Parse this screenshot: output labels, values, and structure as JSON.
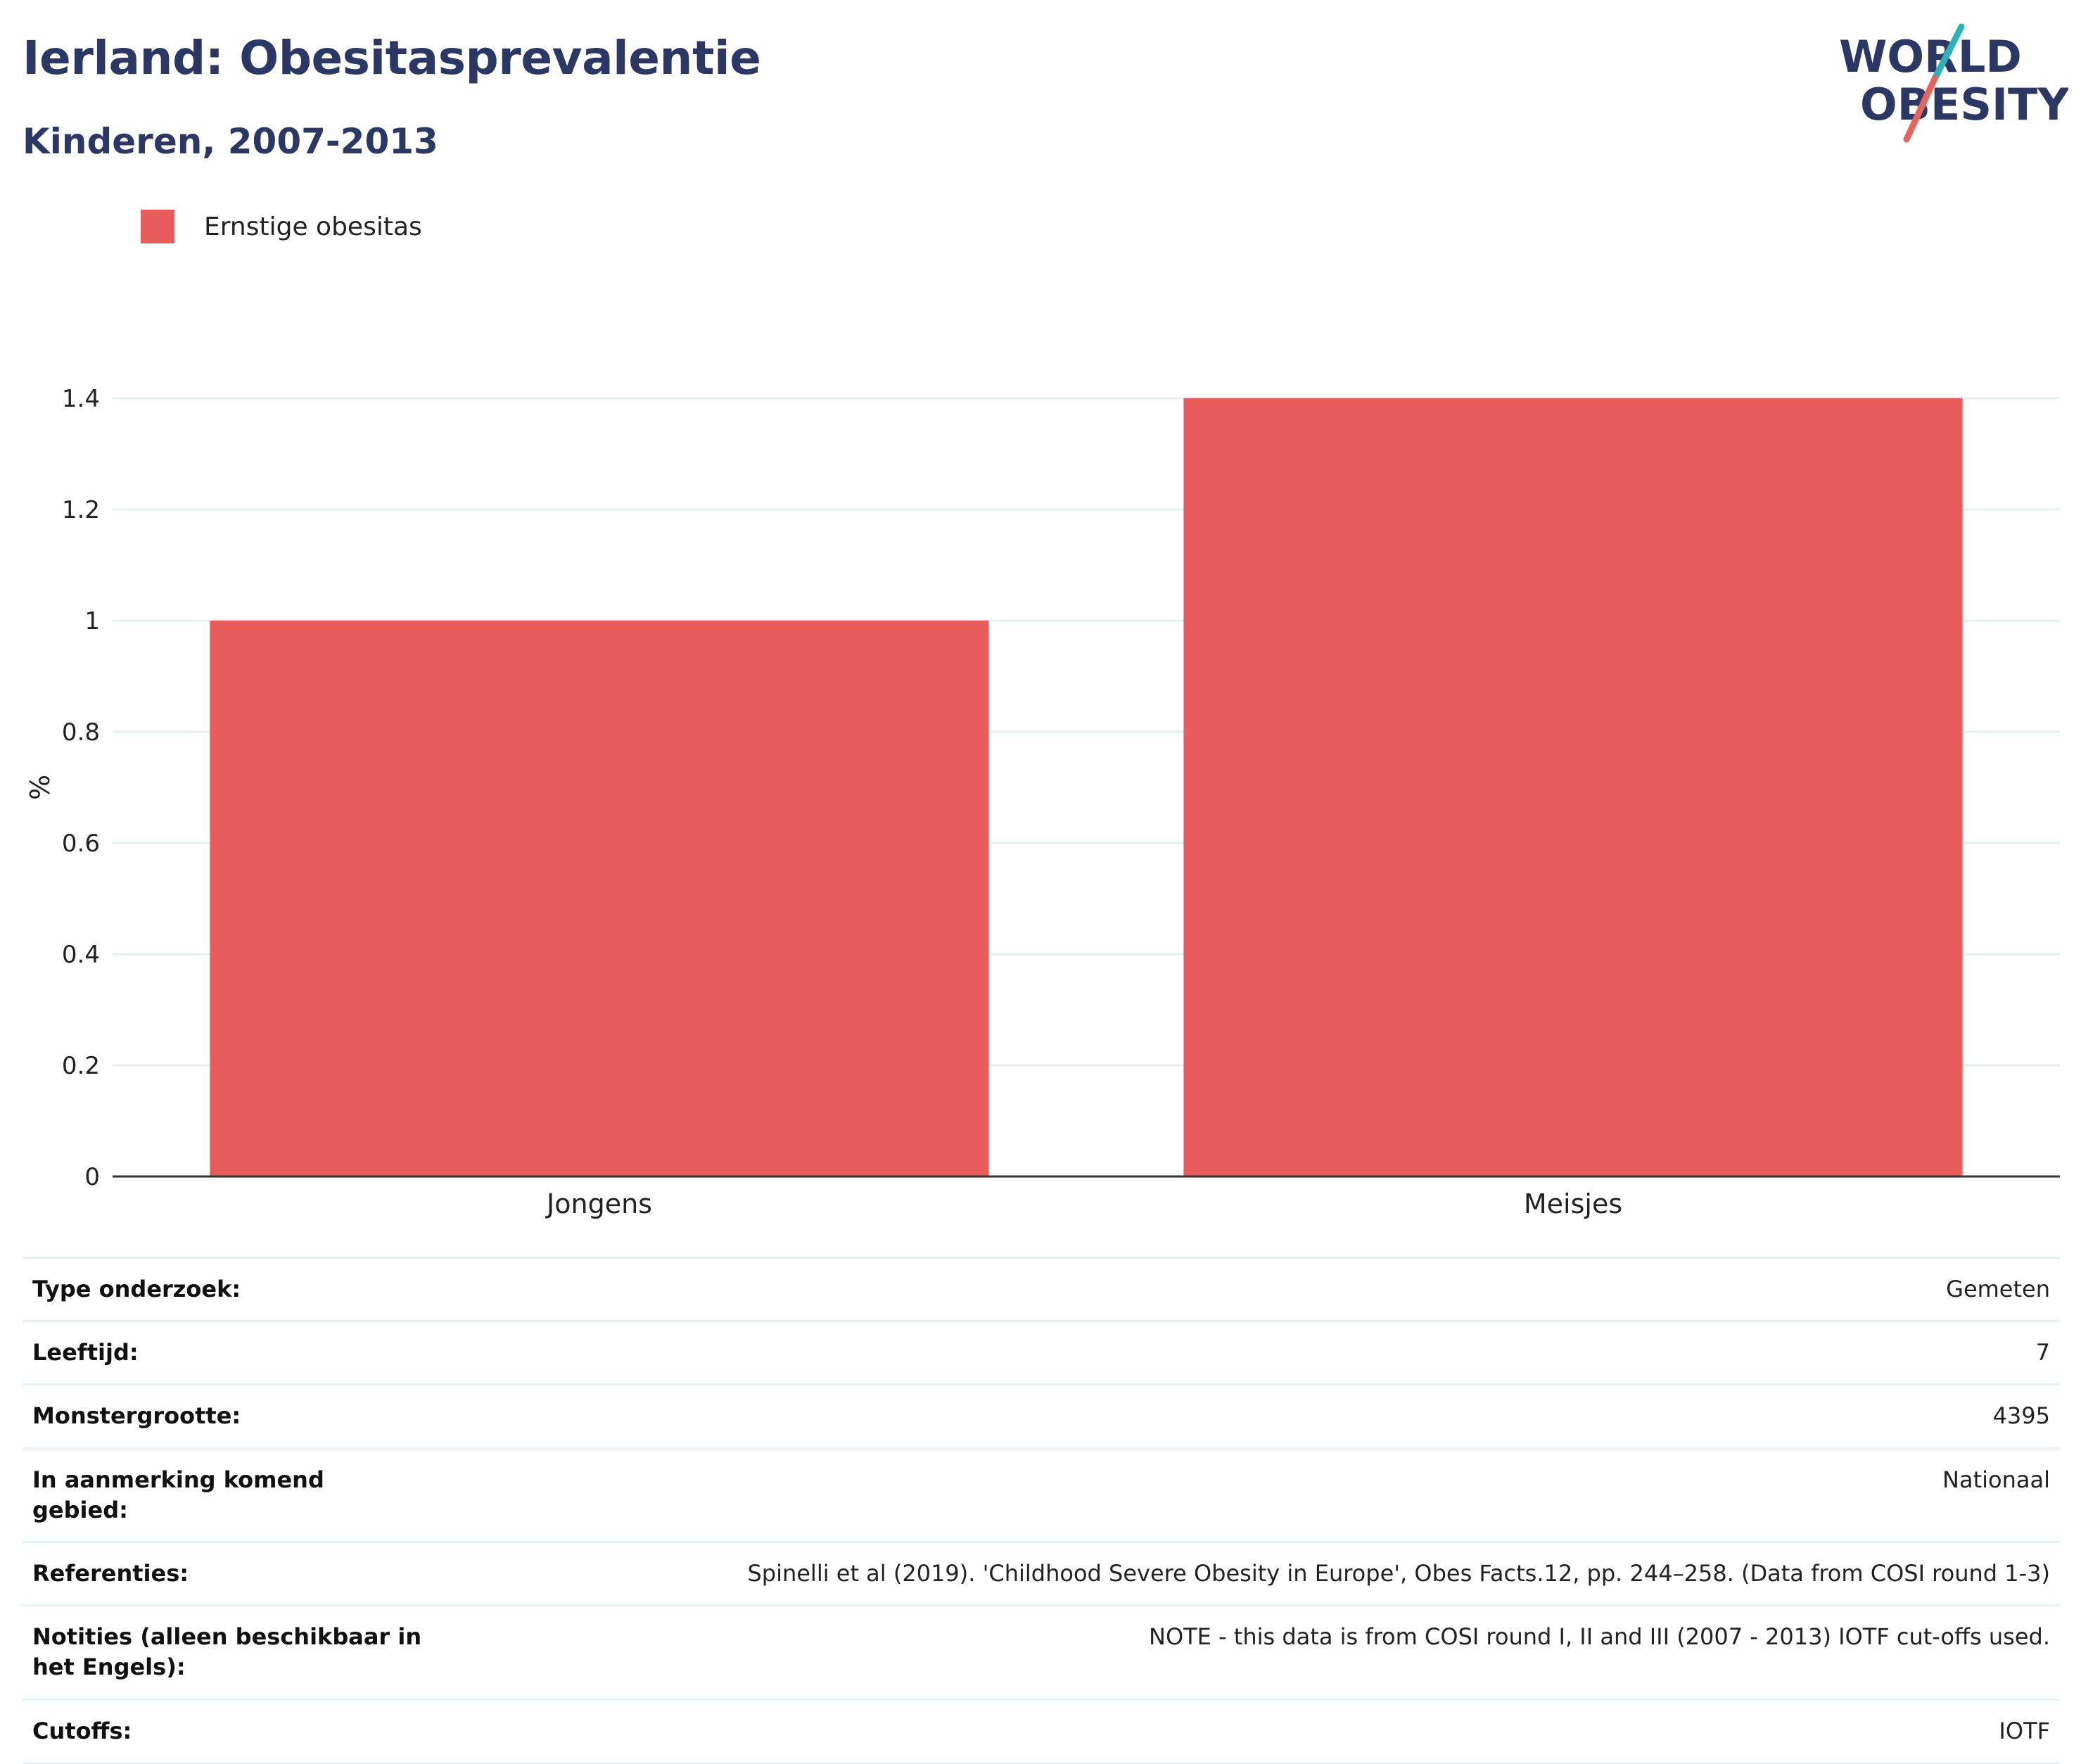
{
  "header": {
    "title": "Ierland: Obesitasprevalentie",
    "subtitle": "Kinderen, 2007-2013"
  },
  "logo": {
    "line1": "WORLD",
    "line2": "OBESITY",
    "colors": {
      "text": "#2b3866",
      "accent_teal": "#2bb3b9",
      "accent_coral": "#e8635b"
    }
  },
  "colors": {
    "series": "#e95c5c",
    "gridline": "#e6eef0",
    "axis": "#333333"
  },
  "chart_data": {
    "type": "bar",
    "categories": [
      "Jongens",
      "Meisjes"
    ],
    "series": [
      {
        "name": "Ernstige obesitas",
        "values": [
          1.0,
          1.4
        ]
      }
    ],
    "ylabel": "%",
    "ylim": [
      0,
      1.4
    ],
    "yticks": [
      "0",
      "0.2",
      "0.4",
      "0.6",
      "0.8",
      "1",
      "1.2",
      "1.4"
    ],
    "grid": true,
    "legend_position": "top-left"
  },
  "meta": {
    "rows": [
      {
        "label": "Type onderzoek:",
        "value": "Gemeten"
      },
      {
        "label": "Leeftijd:",
        "value": "7"
      },
      {
        "label": "Monstergrootte:",
        "value": "4395"
      },
      {
        "label": "In aanmerking komend gebied:",
        "value": "Nationaal"
      },
      {
        "label": "Referenties:",
        "value": "Spinelli et al (2019). 'Childhood Severe Obesity in Europe', Obes Facts.12, pp. 244–258. (Data from COSI round 1-3)"
      },
      {
        "label": "Notities (alleen beschikbaar in het Engels):",
        "value": "NOTE - this data is from COSI round I, II and III (2007 - 2013) IOTF cut-offs used."
      },
      {
        "label": "Cutoffs:",
        "value": "IOTF"
      }
    ]
  }
}
